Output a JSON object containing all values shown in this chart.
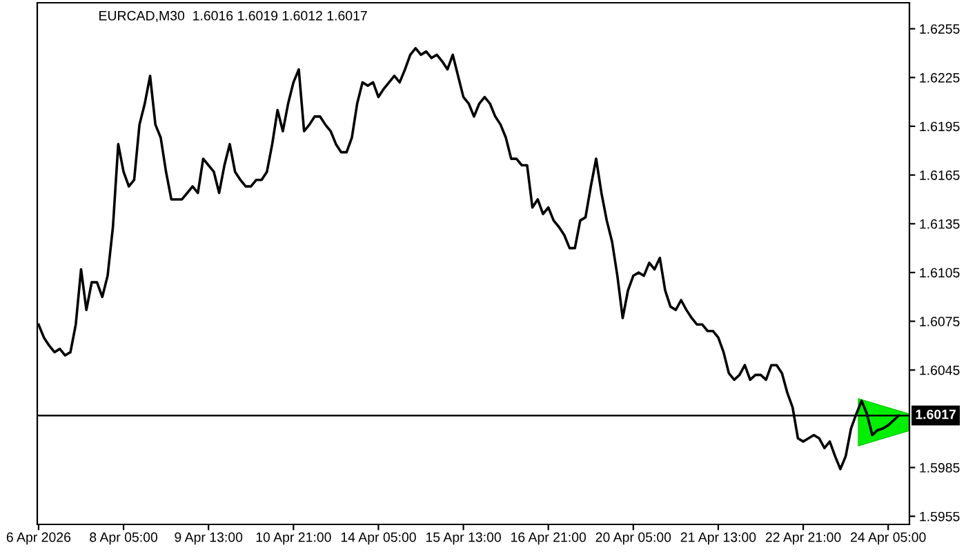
{
  "chart_data": {
    "type": "line",
    "title": "EURCAD,M30  1.6016 1.6019 1.6012 1.6017",
    "categories": [
      "6 Apr 2026",
      null,
      null,
      null,
      null,
      null,
      null,
      null,
      null,
      null,
      null,
      null,
      null,
      null,
      null,
      null,
      "8 Apr 05:00",
      null,
      null,
      null,
      null,
      null,
      null,
      null,
      null,
      null,
      null,
      null,
      null,
      null,
      null,
      null,
      "9 Apr 13:00",
      null,
      null,
      null,
      null,
      null,
      null,
      null,
      null,
      null,
      null,
      null,
      null,
      null,
      null,
      null,
      "10 Apr 21:00",
      null,
      null,
      null,
      null,
      null,
      null,
      null,
      null,
      null,
      null,
      null,
      null,
      null,
      null,
      null,
      "14 Apr 05:00",
      null,
      null,
      null,
      null,
      null,
      null,
      null,
      null,
      null,
      null,
      null,
      null,
      null,
      null,
      null,
      "15 Apr 13:00",
      null,
      null,
      null,
      null,
      null,
      null,
      null,
      null,
      null,
      null,
      null,
      null,
      null,
      null,
      null,
      "16 Apr 21:00",
      null,
      null,
      null,
      null,
      null,
      null,
      null,
      null,
      null,
      null,
      null,
      null,
      null,
      null,
      null,
      "20 Apr 05:00",
      null,
      null,
      null,
      null,
      null,
      null,
      null,
      null,
      null,
      null,
      null,
      null,
      null,
      null,
      null,
      "21 Apr 13:00",
      null,
      null,
      null,
      null,
      null,
      null,
      null,
      null,
      null,
      null,
      null,
      null,
      null,
      null,
      null,
      "22 Apr 21:00",
      null,
      null,
      null,
      null,
      null,
      null,
      null,
      null,
      null,
      null,
      null,
      null,
      null,
      null,
      null,
      "24 Apr 05:00",
      null,
      null
    ],
    "series": [
      {
        "color": "#000000",
        "values": [
          1.6073,
          1.6065,
          1.606,
          1.6056,
          1.6058,
          1.6054,
          1.6056,
          1.6073,
          1.6107,
          1.6082,
          1.6099,
          1.6099,
          1.609,
          1.6103,
          1.6133,
          1.6184,
          1.6167,
          1.6158,
          1.6162,
          1.6196,
          1.6209,
          1.6226,
          1.6196,
          1.6188,
          1.6167,
          1.615,
          1.615,
          1.615,
          1.6154,
          1.6158,
          1.6154,
          1.6175,
          1.6171,
          1.6167,
          1.6154,
          1.6171,
          1.6184,
          1.6167,
          1.6162,
          1.6158,
          1.6158,
          1.6162,
          1.6162,
          1.6167,
          1.6184,
          1.6205,
          1.6192,
          1.6209,
          1.6222,
          1.623,
          1.6192,
          1.6196,
          1.6201,
          1.6201,
          1.6196,
          1.6192,
          1.6184,
          1.6179,
          1.6179,
          1.6188,
          1.6209,
          1.6222,
          1.622,
          1.6222,
          1.6213,
          1.6218,
          1.6222,
          1.6226,
          1.6222,
          1.623,
          1.6239,
          1.6243,
          1.6239,
          1.6241,
          1.6237,
          1.6239,
          1.6235,
          1.623,
          1.6239,
          1.6226,
          1.6213,
          1.6209,
          1.6201,
          1.6209,
          1.6213,
          1.6209,
          1.6201,
          1.6196,
          1.6188,
          1.6175,
          1.6175,
          1.6171,
          1.6171,
          1.6145,
          1.615,
          1.6141,
          1.6145,
          1.6137,
          1.6133,
          1.6128,
          1.612,
          1.612,
          1.6137,
          1.6139,
          1.6158,
          1.6175,
          1.6154,
          1.6137,
          1.6124,
          1.6103,
          1.6077,
          1.6094,
          1.6103,
          1.6105,
          1.6103,
          1.6111,
          1.6107,
          1.6114,
          1.6094,
          1.6084,
          1.6082,
          1.6088,
          1.6082,
          1.6077,
          1.6073,
          1.6073,
          1.6069,
          1.6069,
          1.6065,
          1.6056,
          1.6043,
          1.6039,
          1.6042,
          1.6048,
          1.6039,
          1.6042,
          1.6042,
          1.6039,
          1.6048,
          1.6048,
          1.6043,
          1.6031,
          1.6022,
          1.6003,
          1.6001,
          1.6003,
          1.6005,
          1.6003,
          1.5997,
          1.6001,
          1.5992,
          1.5984,
          1.5992,
          1.6009,
          1.6018,
          1.6026,
          1.6018,
          1.6005,
          1.6008,
          1.6009,
          1.6011,
          1.6014,
          1.6017
        ]
      }
    ],
    "ylim": [
      1.595,
      1.6271
    ],
    "yticks": [
      {
        "value": 1.5955,
        "label": "1.5955"
      },
      {
        "value": 1.5985,
        "label": "1.5985"
      },
      {
        "value": 1.6045,
        "label": "1.6045"
      },
      {
        "value": 1.6075,
        "label": "1.6075"
      },
      {
        "value": 1.6105,
        "label": "1.6105"
      },
      {
        "value": 1.6135,
        "label": "1.6135"
      },
      {
        "value": 1.6165,
        "label": "1.6165"
      },
      {
        "value": 1.6195,
        "label": "1.6195"
      },
      {
        "value": 1.6225,
        "label": "1.6225"
      },
      {
        "value": 1.6255,
        "label": "1.6255"
      }
    ],
    "ref_lines": [
      {
        "axis": "y",
        "value": 1.6017,
        "label": "1.6017",
        "color": "#000000"
      }
    ],
    "grid": false,
    "legend": false
  }
}
